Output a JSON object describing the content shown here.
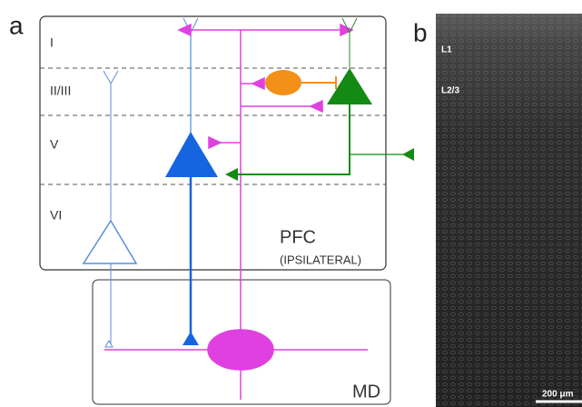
{
  "panel_a": {
    "label": "a",
    "layers": [
      "I",
      "II/III",
      "V",
      "VI"
    ],
    "region": "PFC",
    "region_note": "(IPSILATERAL)",
    "thalamus": "MD"
  },
  "panel_b": {
    "label": "b",
    "layer_labels": [
      "L1",
      "L2/3"
    ],
    "scale_bar": "200 μm"
  }
}
